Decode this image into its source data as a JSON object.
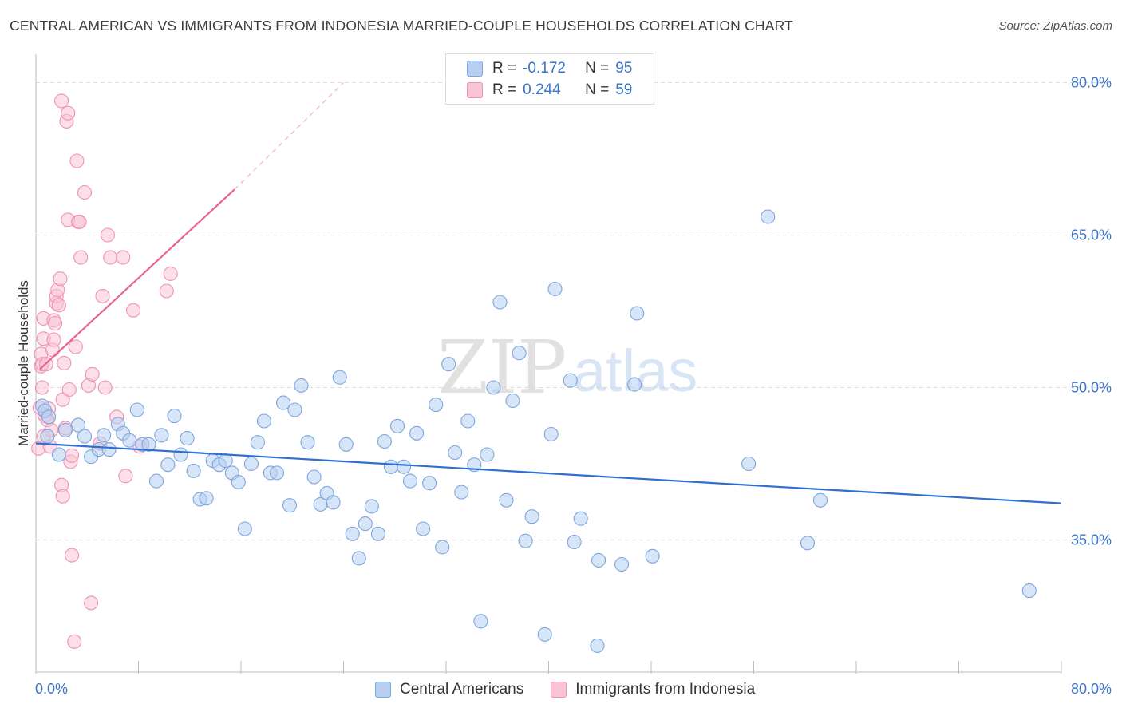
{
  "title": "CENTRAL AMERICAN VS IMMIGRANTS FROM INDONESIA MARRIED-COUPLE HOUSEHOLDS CORRELATION CHART",
  "source": "Source: ZipAtlas.com",
  "watermark": {
    "zip": "ZIP",
    "atlas": "atlas"
  },
  "legend": {
    "r_label": "R =",
    "n_label": "N =",
    "rows": [
      {
        "r": "-0.172",
        "n": "95"
      },
      {
        "r": "0.244",
        "n": "59"
      }
    ]
  },
  "colors": {
    "blue_fill": "#b7d0f2",
    "blue_stroke": "#7ea6dd",
    "blue_line": "#2f6fd0",
    "pink_fill": "#f9c5d6",
    "pink_stroke": "#ee93b1",
    "pink_line": "#e8648f",
    "tick_label": "#3b74c9",
    "grid": "#dedede"
  },
  "chart_data": {
    "type": "scatter",
    "title": "CENTRAL AMERICAN VS IMMIGRANTS FROM INDONESIA MARRIED-COUPLE HOUSEHOLDS CORRELATION CHART",
    "xlabel": "",
    "ylabel": "Married-couple Households",
    "xlim": [
      0,
      80
    ],
    "ylim": [
      22,
      82
    ],
    "x_tick_labels": [
      "0.0%",
      "80.0%"
    ],
    "y_ticks": [
      35,
      50,
      65,
      80
    ],
    "y_tick_labels": [
      "35.0%",
      "50.0%",
      "65.0%",
      "80.0%"
    ],
    "grid": true,
    "legend_position": "top-center",
    "series": [
      {
        "name": "Central Americans",
        "color": "#b7d0f2",
        "trend": {
          "x": [
            0.0,
            80.0
          ],
          "y": [
            44.5,
            38.6
          ],
          "style": "solid"
        },
        "points": [
          [
            0.5,
            48.2
          ],
          [
            0.7,
            47.7
          ],
          [
            0.9,
            45.2
          ],
          [
            1.0,
            47.1
          ],
          [
            1.8,
            43.4
          ],
          [
            2.3,
            45.8
          ],
          [
            3.3,
            46.3
          ],
          [
            3.8,
            45.2
          ],
          [
            4.3,
            43.2
          ],
          [
            4.9,
            43.9
          ],
          [
            5.3,
            45.3
          ],
          [
            5.7,
            43.9
          ],
          [
            6.4,
            46.4
          ],
          [
            6.8,
            45.5
          ],
          [
            7.3,
            44.8
          ],
          [
            7.9,
            47.8
          ],
          [
            8.3,
            44.4
          ],
          [
            8.8,
            44.4
          ],
          [
            9.4,
            40.8
          ],
          [
            9.8,
            45.3
          ],
          [
            10.3,
            42.4
          ],
          [
            10.8,
            47.2
          ],
          [
            11.3,
            43.4
          ],
          [
            11.8,
            45.0
          ],
          [
            12.3,
            41.8
          ],
          [
            12.8,
            39.0
          ],
          [
            13.3,
            39.1
          ],
          [
            13.8,
            42.8
          ],
          [
            14.3,
            42.4
          ],
          [
            14.8,
            42.8
          ],
          [
            15.3,
            41.6
          ],
          [
            15.8,
            40.7
          ],
          [
            16.3,
            36.1
          ],
          [
            16.8,
            42.5
          ],
          [
            17.3,
            44.6
          ],
          [
            17.8,
            46.7
          ],
          [
            18.3,
            41.6
          ],
          [
            18.8,
            41.6
          ],
          [
            19.3,
            48.5
          ],
          [
            19.8,
            38.4
          ],
          [
            20.2,
            47.8
          ],
          [
            20.7,
            50.2
          ],
          [
            21.2,
            44.6
          ],
          [
            21.7,
            41.2
          ],
          [
            22.2,
            38.5
          ],
          [
            22.7,
            39.6
          ],
          [
            23.2,
            38.7
          ],
          [
            23.7,
            51.0
          ],
          [
            24.2,
            44.4
          ],
          [
            24.7,
            35.6
          ],
          [
            25.2,
            33.2
          ],
          [
            25.7,
            36.6
          ],
          [
            26.2,
            38.3
          ],
          [
            26.7,
            35.6
          ],
          [
            27.2,
            44.7
          ],
          [
            27.7,
            42.2
          ],
          [
            28.2,
            46.2
          ],
          [
            28.7,
            42.2
          ],
          [
            29.2,
            40.8
          ],
          [
            29.7,
            45.5
          ],
          [
            30.2,
            36.1
          ],
          [
            30.7,
            40.6
          ],
          [
            31.2,
            48.3
          ],
          [
            31.7,
            34.3
          ],
          [
            32.2,
            52.3
          ],
          [
            32.7,
            43.6
          ],
          [
            33.2,
            39.7
          ],
          [
            33.7,
            46.7
          ],
          [
            34.2,
            42.4
          ],
          [
            34.7,
            27.0
          ],
          [
            35.2,
            43.4
          ],
          [
            35.7,
            50.0
          ],
          [
            36.2,
            58.4
          ],
          [
            36.7,
            38.9
          ],
          [
            37.2,
            48.7
          ],
          [
            37.7,
            53.4
          ],
          [
            38.2,
            34.9
          ],
          [
            38.7,
            37.3
          ],
          [
            39.7,
            25.7
          ],
          [
            40.2,
            45.4
          ],
          [
            40.5,
            59.7
          ],
          [
            41.7,
            50.7
          ],
          [
            42.0,
            34.8
          ],
          [
            42.5,
            37.1
          ],
          [
            43.8,
            24.6
          ],
          [
            43.9,
            33.0
          ],
          [
            45.7,
            32.6
          ],
          [
            46.7,
            50.3
          ],
          [
            46.9,
            57.3
          ],
          [
            48.1,
            33.4
          ],
          [
            55.6,
            42.5
          ],
          [
            57.1,
            66.8
          ],
          [
            60.2,
            34.7
          ],
          [
            61.2,
            38.9
          ],
          [
            77.5,
            30.0
          ]
        ]
      },
      {
        "name": "Immigrants from Indonesia",
        "color": "#f9c5d6",
        "trend": {
          "x": [
            0.3,
            15.5
          ],
          "y": [
            51.8,
            69.5
          ],
          "style": "solid",
          "extension_to": [
            24.0,
            80.0
          ]
        },
        "points": [
          [
            0.2,
            44.0
          ],
          [
            0.3,
            48.0
          ],
          [
            0.4,
            53.3
          ],
          [
            0.4,
            52.1
          ],
          [
            0.5,
            50.0
          ],
          [
            0.5,
            52.3
          ],
          [
            0.6,
            45.2
          ],
          [
            0.6,
            56.8
          ],
          [
            0.6,
            54.8
          ],
          [
            0.7,
            47.2
          ],
          [
            0.8,
            52.3
          ],
          [
            0.9,
            46.8
          ],
          [
            1.0,
            47.9
          ],
          [
            1.1,
            44.2
          ],
          [
            1.2,
            45.8
          ],
          [
            1.3,
            53.7
          ],
          [
            1.4,
            54.7
          ],
          [
            1.4,
            56.6
          ],
          [
            1.5,
            56.3
          ],
          [
            1.6,
            58.3
          ],
          [
            1.6,
            59.0
          ],
          [
            1.7,
            59.6
          ],
          [
            1.8,
            58.1
          ],
          [
            1.9,
            60.7
          ],
          [
            2.0,
            78.2
          ],
          [
            2.0,
            40.4
          ],
          [
            2.1,
            39.3
          ],
          [
            2.1,
            48.8
          ],
          [
            2.2,
            52.4
          ],
          [
            2.3,
            46.0
          ],
          [
            2.4,
            76.2
          ],
          [
            2.5,
            66.5
          ],
          [
            2.5,
            77.0
          ],
          [
            2.6,
            49.8
          ],
          [
            2.7,
            42.7
          ],
          [
            2.8,
            33.5
          ],
          [
            2.8,
            43.3
          ],
          [
            3.0,
            25.0
          ],
          [
            3.1,
            54.0
          ],
          [
            3.2,
            72.3
          ],
          [
            3.3,
            66.3
          ],
          [
            3.4,
            66.3
          ],
          [
            3.5,
            62.8
          ],
          [
            3.8,
            69.2
          ],
          [
            4.1,
            50.2
          ],
          [
            4.3,
            28.8
          ],
          [
            4.4,
            51.3
          ],
          [
            5.0,
            44.5
          ],
          [
            5.2,
            59.0
          ],
          [
            5.4,
            50.0
          ],
          [
            5.6,
            65.0
          ],
          [
            5.8,
            62.8
          ],
          [
            6.3,
            47.1
          ],
          [
            6.8,
            62.8
          ],
          [
            7.0,
            41.3
          ],
          [
            7.6,
            57.6
          ],
          [
            8.1,
            44.2
          ],
          [
            10.2,
            59.5
          ],
          [
            10.5,
            61.2
          ]
        ]
      }
    ]
  }
}
